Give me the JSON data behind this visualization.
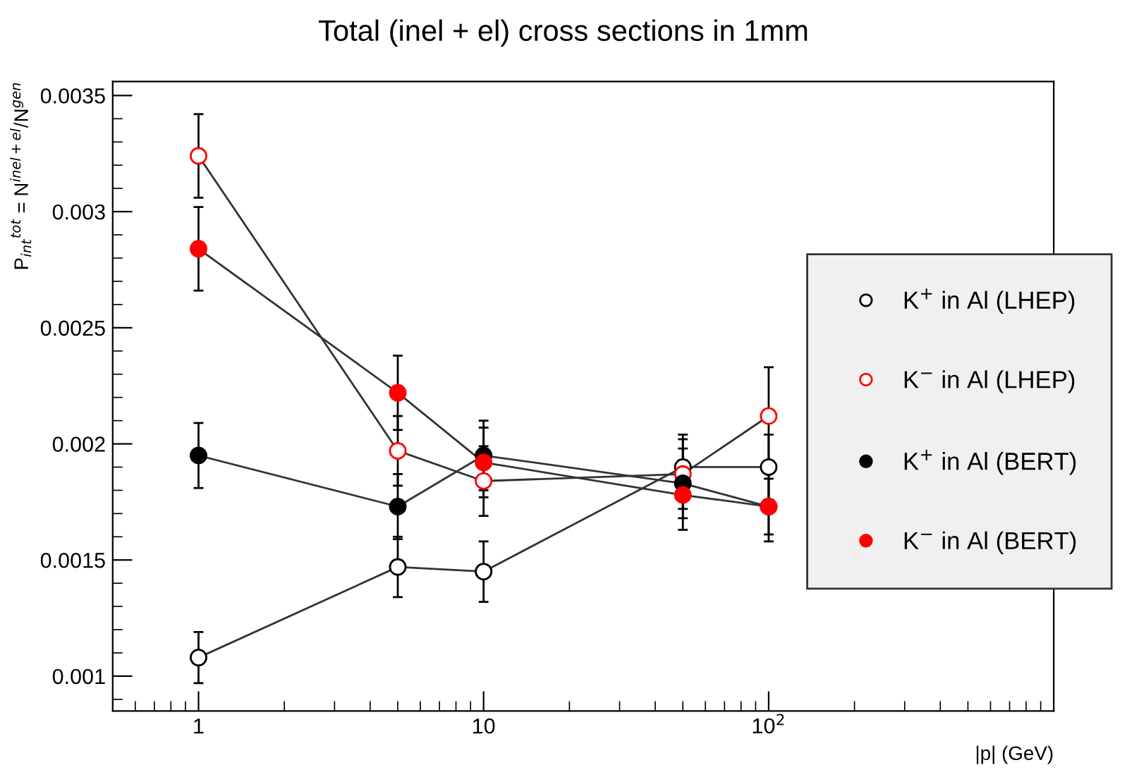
{
  "chart_data": {
    "type": "line",
    "title": "Total (inel + el) cross sections in 1mm",
    "xlabel": "|p| (GeV)",
    "ylabel": "P$_{int}$$^{tot}$ = N$^{inel+el}$/N$^{gen}$",
    "x": [
      1,
      5,
      10,
      50,
      100
    ],
    "series": [
      {
        "name": "K$^{+}$ in Al (LHEP)",
        "color": "#000000",
        "marker": "open circle",
        "values": [
          0.00108,
          0.00147,
          0.00145,
          0.0019,
          0.0019
        ],
        "errors": [
          0.00011,
          0.00013,
          0.00013,
          0.00014,
          0.00014
        ]
      },
      {
        "name": "K$^{−}$ in Al (LHEP)",
        "color": "#ff0000",
        "marker": "open circle",
        "values": [
          0.00324,
          0.00197,
          0.00184,
          0.00187,
          0.00212
        ],
        "errors": [
          0.00018,
          0.00015,
          0.00015,
          0.00015,
          0.00021
        ]
      },
      {
        "name": "K$^{+}$ in Al (BERT)",
        "color": "#000000",
        "marker": "circle",
        "values": [
          0.00195,
          0.00173,
          0.00195,
          0.00183,
          0.00173
        ],
        "errors": [
          0.00014,
          0.00014,
          0.00015,
          0.00015,
          0.00012
        ]
      },
      {
        "name": "K$^{−}$ in Al (BERT)",
        "color": "#ff0000",
        "marker": "circle",
        "values": [
          0.00284,
          0.00222,
          0.00192,
          0.00178,
          0.00173
        ],
        "errors": [
          0.00018,
          0.00016,
          0.00015,
          0.00015,
          0.00015
        ]
      }
    ],
    "log": "x",
    "xlim": [
      0.5,
      1000
    ],
    "xticks": [
      1,
      10,
      {
        "value": 100,
        "label": "10$^{2}$"
      }
    ],
    "ylim": [
      0.00085,
      0.00356
    ],
    "yticks": [
      0.001,
      0.0015,
      0.002,
      0.0025,
      0.003,
      0.0035
    ],
    "line_style": "solid",
    "grid": false,
    "legend": "right"
  }
}
